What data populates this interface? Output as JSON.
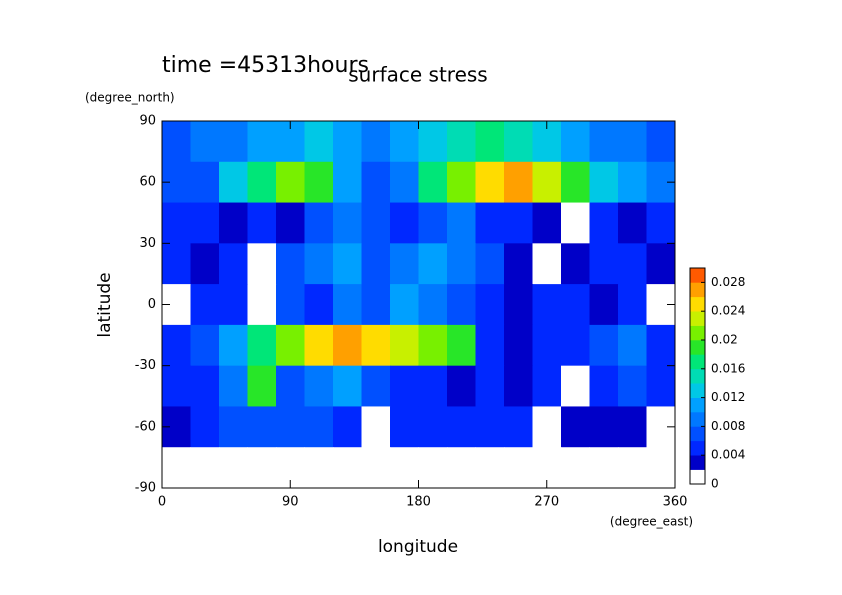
{
  "chart_data": {
    "type": "heatmap",
    "title": "surface stress",
    "subtitle": "time =45313hours",
    "x_label": "longitude",
    "x_unit": "(degree_east)",
    "y_label": "latitude",
    "y_unit": "(degree_north)",
    "xlim": [
      0,
      360
    ],
    "ylim": [
      -90,
      90
    ],
    "xticks": [
      0,
      90,
      180,
      270,
      360
    ],
    "yticks": [
      -90,
      -60,
      -30,
      0,
      30,
      60,
      90
    ],
    "x_edges": [
      0,
      20,
      40,
      60,
      80,
      100,
      120,
      140,
      160,
      180,
      200,
      220,
      240,
      260,
      280,
      300,
      320,
      340,
      360
    ],
    "y_edges": [
      90,
      70,
      50,
      30,
      10,
      -10,
      -30,
      -50,
      -70,
      -90
    ],
    "values": [
      [
        0.006,
        0.008,
        0.008,
        0.01,
        0.01,
        0.012,
        0.01,
        0.008,
        0.01,
        0.012,
        0.014,
        0.016,
        0.014,
        0.012,
        0.01,
        0.008,
        0.008,
        0.006
      ],
      [
        0.006,
        0.006,
        0.012,
        0.016,
        0.02,
        0.018,
        0.01,
        0.006,
        0.008,
        0.016,
        0.02,
        0.024,
        0.026,
        0.022,
        0.018,
        0.012,
        0.01,
        0.008
      ],
      [
        0.004,
        0.004,
        0.002,
        0.004,
        0.002,
        0.006,
        0.008,
        0.006,
        0.004,
        0.006,
        0.008,
        0.004,
        0.004,
        0.002,
        0,
        0.004,
        0.002,
        0.004
      ],
      [
        0.004,
        0.002,
        0.004,
        0,
        0.006,
        0.008,
        0.01,
        0.006,
        0.008,
        0.01,
        0.008,
        0.006,
        0.002,
        0,
        0.002,
        0.004,
        0.004,
        0.002
      ],
      [
        0,
        0.004,
        0.004,
        0,
        0.006,
        0.004,
        0.008,
        0.006,
        0.01,
        0.008,
        0.006,
        0.004,
        0.002,
        0.004,
        0.004,
        0.002,
        0.004,
        0
      ],
      [
        0.004,
        0.006,
        0.01,
        0.016,
        0.02,
        0.024,
        0.026,
        0.024,
        0.022,
        0.02,
        0.018,
        0.004,
        0.002,
        0.004,
        0.004,
        0.006,
        0.008,
        0.004
      ],
      [
        0.004,
        0.004,
        0.008,
        0.018,
        0.006,
        0.008,
        0.01,
        0.006,
        0.004,
        0.004,
        0.002,
        0.004,
        0.002,
        0.004,
        0,
        0.004,
        0.006,
        0.004
      ],
      [
        0.002,
        0.004,
        0.006,
        0.006,
        0.006,
        0.006,
        0.004,
        0,
        0.004,
        0.004,
        0.004,
        0.004,
        0.004,
        0,
        0.002,
        0.002,
        0.002,
        0
      ],
      [
        0,
        0,
        0,
        0,
        0,
        0,
        0,
        0,
        0,
        0,
        0,
        0,
        0,
        0,
        0,
        0,
        0,
        0
      ]
    ],
    "levels": [
      0,
      0.002,
      0.004,
      0.006,
      0.008,
      0.01,
      0.012,
      0.014,
      0.016,
      0.018,
      0.02,
      0.022,
      0.024,
      0.026,
      0.028,
      0.03
    ],
    "colors": [
      "#ffffff",
      "#0000c8",
      "#0028ff",
      "#0050ff",
      "#0078ff",
      "#00a0ff",
      "#00c8e6",
      "#00dcb4",
      "#00e678",
      "#28e628",
      "#78f000",
      "#c8f000",
      "#ffdc00",
      "#ffa000",
      "#ff5a00"
    ],
    "colorbar_ticks": [
      0,
      0.004,
      0.008,
      0.012,
      0.016,
      0.02,
      0.024,
      0.028
    ]
  }
}
